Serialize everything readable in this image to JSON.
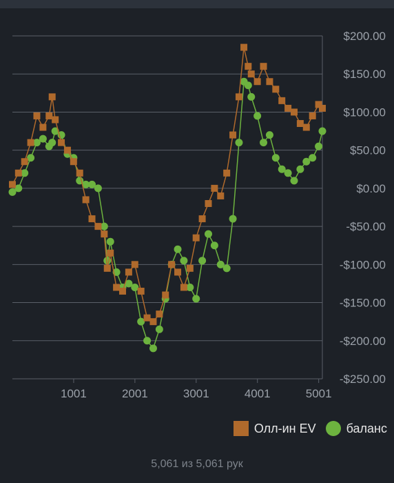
{
  "colors": {
    "background": "#1d2127",
    "grid": "#5b6069",
    "axis_text": "#9ba1a9",
    "ev_series": "#b06a2c",
    "balance_series": "#6db33f"
  },
  "chart_data": {
    "type": "line",
    "x_ticks": [
      1001,
      2001,
      3001,
      4001,
      5001
    ],
    "x_tick_labels": [
      "1001",
      "2001",
      "3001",
      "4001",
      "5001"
    ],
    "xlim": [
      1,
      5061
    ],
    "ylim": [
      -250,
      200
    ],
    "y_ticks": [
      200,
      150,
      100,
      50,
      0,
      -50,
      -100,
      -150,
      -200,
      -250
    ],
    "y_tick_labels": [
      "$200.00",
      "$150.00",
      "$100.00",
      "$50.00",
      "$0.00",
      "-$50.00",
      "-$100.00",
      "-$150.00",
      "-$200.00",
      "-$250.00"
    ],
    "grid": true,
    "legend_position": "bottom-right",
    "series": [
      {
        "name": "Олл-ин EV",
        "marker": "square",
        "x": [
          1,
          100,
          200,
          300,
          400,
          500,
          600,
          650,
          700,
          800,
          900,
          1000,
          1100,
          1200,
          1300,
          1400,
          1500,
          1550,
          1600,
          1700,
          1800,
          1900,
          2000,
          2100,
          2200,
          2300,
          2400,
          2500,
          2600,
          2700,
          2800,
          2900,
          3000,
          3100,
          3200,
          3300,
          3400,
          3500,
          3600,
          3700,
          3780,
          3850,
          3900,
          4000,
          4100,
          4200,
          4300,
          4400,
          4500,
          4600,
          4700,
          4800,
          4900,
          5000,
          5061
        ],
        "y": [
          5,
          20,
          35,
          60,
          95,
          80,
          95,
          120,
          90,
          60,
          50,
          35,
          20,
          -15,
          -40,
          -50,
          -60,
          -105,
          -85,
          -130,
          -135,
          -110,
          -100,
          -135,
          -170,
          -175,
          -165,
          -140,
          -100,
          -110,
          -130,
          -105,
          -65,
          -40,
          -20,
          0,
          -10,
          20,
          70,
          120,
          185,
          160,
          150,
          140,
          160,
          140,
          130,
          115,
          105,
          100,
          85,
          80,
          95,
          110,
          105
        ]
      },
      {
        "name": "баланс",
        "marker": "circle",
        "x": [
          1,
          100,
          200,
          300,
          400,
          500,
          600,
          650,
          700,
          800,
          900,
          1000,
          1100,
          1200,
          1300,
          1400,
          1500,
          1550,
          1600,
          1700,
          1800,
          1900,
          2000,
          2100,
          2200,
          2300,
          2400,
          2500,
          2600,
          2700,
          2800,
          2900,
          3000,
          3100,
          3200,
          3300,
          3400,
          3500,
          3600,
          3700,
          3780,
          3850,
          3900,
          4000,
          4100,
          4200,
          4300,
          4400,
          4500,
          4600,
          4700,
          4800,
          4900,
          5000,
          5061
        ],
        "y": [
          -5,
          0,
          20,
          40,
          60,
          65,
          55,
          60,
          75,
          70,
          45,
          40,
          10,
          5,
          5,
          0,
          -50,
          -95,
          -70,
          -110,
          -130,
          -125,
          -130,
          -175,
          -200,
          -210,
          -185,
          -145,
          -100,
          -80,
          -95,
          -130,
          -145,
          -95,
          -60,
          -75,
          -100,
          -105,
          -40,
          60,
          140,
          135,
          120,
          95,
          60,
          70,
          40,
          25,
          20,
          10,
          25,
          35,
          40,
          55,
          75
        ]
      }
    ]
  },
  "legend": {
    "ev_label": "Олл-ин EV",
    "balance_label": "баланс"
  },
  "footer": {
    "hands_text": "5,061 из 5,061 рук"
  }
}
